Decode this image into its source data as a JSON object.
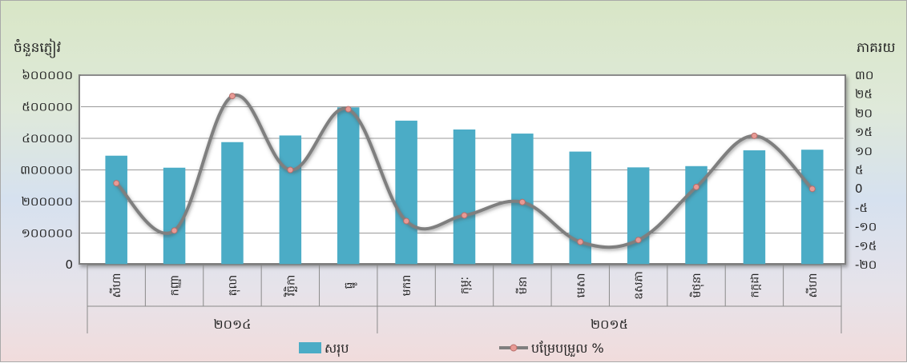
{
  "chart_data": {
    "type": "bar",
    "y_label_left": "ចំនួនភ្ញៀវ",
    "y_label_right": "ភាគរយ",
    "categories": [
      "សីហា",
      "កញ្ញា",
      "តុលា",
      "វិច្ឆិកា",
      "ធ្នូ",
      "មករា",
      "កុម្ភៈ",
      "មីនា",
      "មេសា",
      "ឧសភា",
      "មិថុនា",
      "កក្កដា",
      "សីហា"
    ],
    "year_groups": [
      {
        "label": "២០១៤",
        "count": 5
      },
      {
        "label": "២០១៥",
        "count": 8
      }
    ],
    "y_left_ticks": [
      "0",
      "១០០០០០",
      "២០០០០០",
      "៣០០០០០",
      "៤០០០០០",
      "៥០០០០០",
      "៦០០០០០"
    ],
    "y_left_range": [
      0,
      600000
    ],
    "y_right_ticks": [
      "-២០",
      "-១៥",
      "-១០",
      "-៥",
      "0",
      "៥",
      "១០",
      "១៥",
      "២០",
      "២៥",
      "៣០"
    ],
    "y_right_range": [
      -20,
      30
    ],
    "series": [
      {
        "name": "សរុប",
        "kind": "bar",
        "axis": "left",
        "color": "#4bacc6",
        "values": [
          345000,
          307000,
          388000,
          409000,
          498000,
          456000,
          428000,
          415000,
          358000,
          308000,
          312000,
          362000,
          364000
        ]
      },
      {
        "name": "បម្រែបម្រួល %",
        "kind": "line",
        "axis": "right",
        "color": "#7f7f7f",
        "marker_color": "#e89a95",
        "values": [
          1.5,
          -11,
          24.5,
          5,
          21,
          -8.5,
          -7,
          -3.5,
          -14,
          -13.5,
          0.5,
          14,
          0
        ]
      }
    ],
    "grid": true,
    "legend_position": "bottom"
  }
}
